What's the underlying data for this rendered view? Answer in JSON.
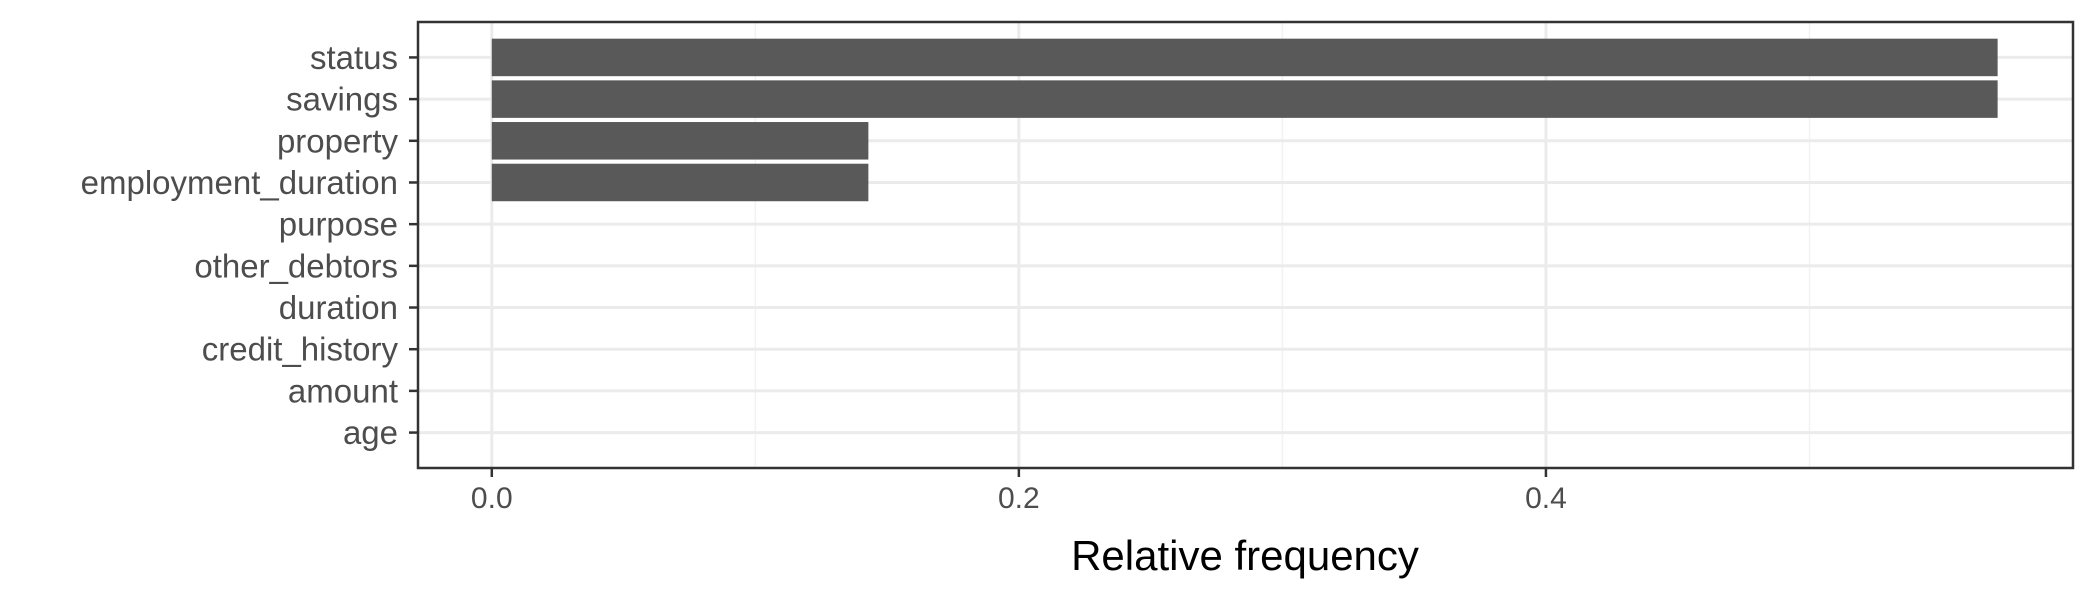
{
  "chart_data": {
    "type": "bar",
    "orientation": "horizontal",
    "categories": [
      "status",
      "savings",
      "property",
      "employment_duration",
      "purpose",
      "other_debtors",
      "duration",
      "credit_history",
      "amount",
      "age"
    ],
    "values": [
      0.5714,
      0.5714,
      0.1429,
      0.1429,
      0,
      0,
      0,
      0,
      0,
      0
    ],
    "xlabel": "Relative frequency",
    "ylabel": "",
    "title": "",
    "xlim": [
      -0.028,
      0.6
    ],
    "xticks": [
      {
        "value": 0.0,
        "label": "0.0"
      },
      {
        "value": 0.2,
        "label": "0.2"
      },
      {
        "value": 0.4,
        "label": "0.4"
      }
    ],
    "xminor": [
      0.1,
      0.3,
      0.5
    ],
    "grid": true,
    "legend": "none",
    "colors": {
      "bar": "#595959",
      "grid_major": "#ebebeb",
      "grid_minor": "#f2f2f2",
      "panel_border": "#333333",
      "label": "#4d4d4d"
    }
  }
}
